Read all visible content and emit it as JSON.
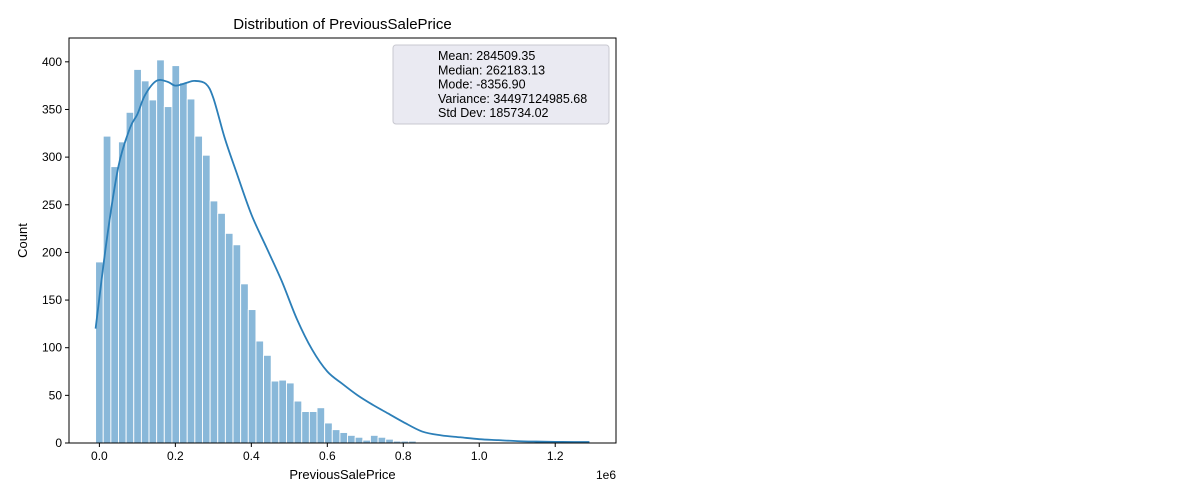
{
  "chart_data": {
    "type": "bar",
    "title": "Distribution of PreviousSalePrice",
    "xlabel": "PreviousSalePrice",
    "ylabel": "Count",
    "x_offset_label": "1e6",
    "xlim": [
      -0.08,
      1.36
    ],
    "ylim": [
      0,
      425
    ],
    "x_ticks": [
      0.0,
      0.2,
      0.4,
      0.6,
      0.8,
      1.0,
      1.2
    ],
    "x_tick_labels": [
      "0.0",
      "0.2",
      "0.4",
      "0.6",
      "0.8",
      "1.0",
      "1.2"
    ],
    "y_ticks": [
      0,
      50,
      100,
      150,
      200,
      250,
      300,
      350,
      400
    ],
    "y_tick_labels": [
      "0",
      "50",
      "100",
      "150",
      "200",
      "250",
      "300",
      "350",
      "400"
    ],
    "bin_start": -0.01,
    "bin_width": 0.0201,
    "values": [
      190,
      322,
      290,
      316,
      347,
      392,
      380,
      360,
      402,
      353,
      396,
      378,
      361,
      322,
      302,
      254,
      241,
      220,
      208,
      167,
      140,
      107,
      92,
      65,
      66,
      63,
      44,
      33,
      33,
      37,
      21,
      14,
      11,
      8,
      6,
      3,
      8,
      6,
      4,
      2,
      2,
      2,
      1,
      1,
      1,
      1,
      0,
      1,
      1,
      1,
      1,
      1,
      1,
      0,
      1,
      1,
      0,
      0,
      0,
      0,
      0,
      0,
      0,
      0,
      0
    ],
    "kde": {
      "x": [
        -0.01,
        0.02,
        0.05,
        0.08,
        0.1,
        0.12,
        0.15,
        0.18,
        0.2,
        0.23,
        0.25,
        0.28,
        0.3,
        0.33,
        0.36,
        0.4,
        0.44,
        0.48,
        0.52,
        0.56,
        0.6,
        0.64,
        0.68,
        0.72,
        0.76,
        0.8,
        0.85,
        0.9,
        0.95,
        1.0,
        1.05,
        1.1,
        1.15,
        1.2,
        1.25,
        1.29
      ],
      "y": [
        120,
        215,
        290,
        330,
        345,
        365,
        380,
        379,
        375,
        378,
        380,
        377,
        362,
        320,
        285,
        240,
        205,
        170,
        130,
        98,
        75,
        62,
        50,
        40,
        31,
        22,
        12,
        8,
        6,
        4,
        3,
        2,
        1.5,
        1.2,
        1,
        1
      ]
    },
    "bar_color": "#89b8d9",
    "line_color": "#2c7fb8",
    "stats": [
      "Mean: 284509.35",
      "Median: 262183.13",
      "Mode: -8356.90",
      "Variance: 34497124985.68",
      "Std Dev: 185734.02"
    ]
  }
}
